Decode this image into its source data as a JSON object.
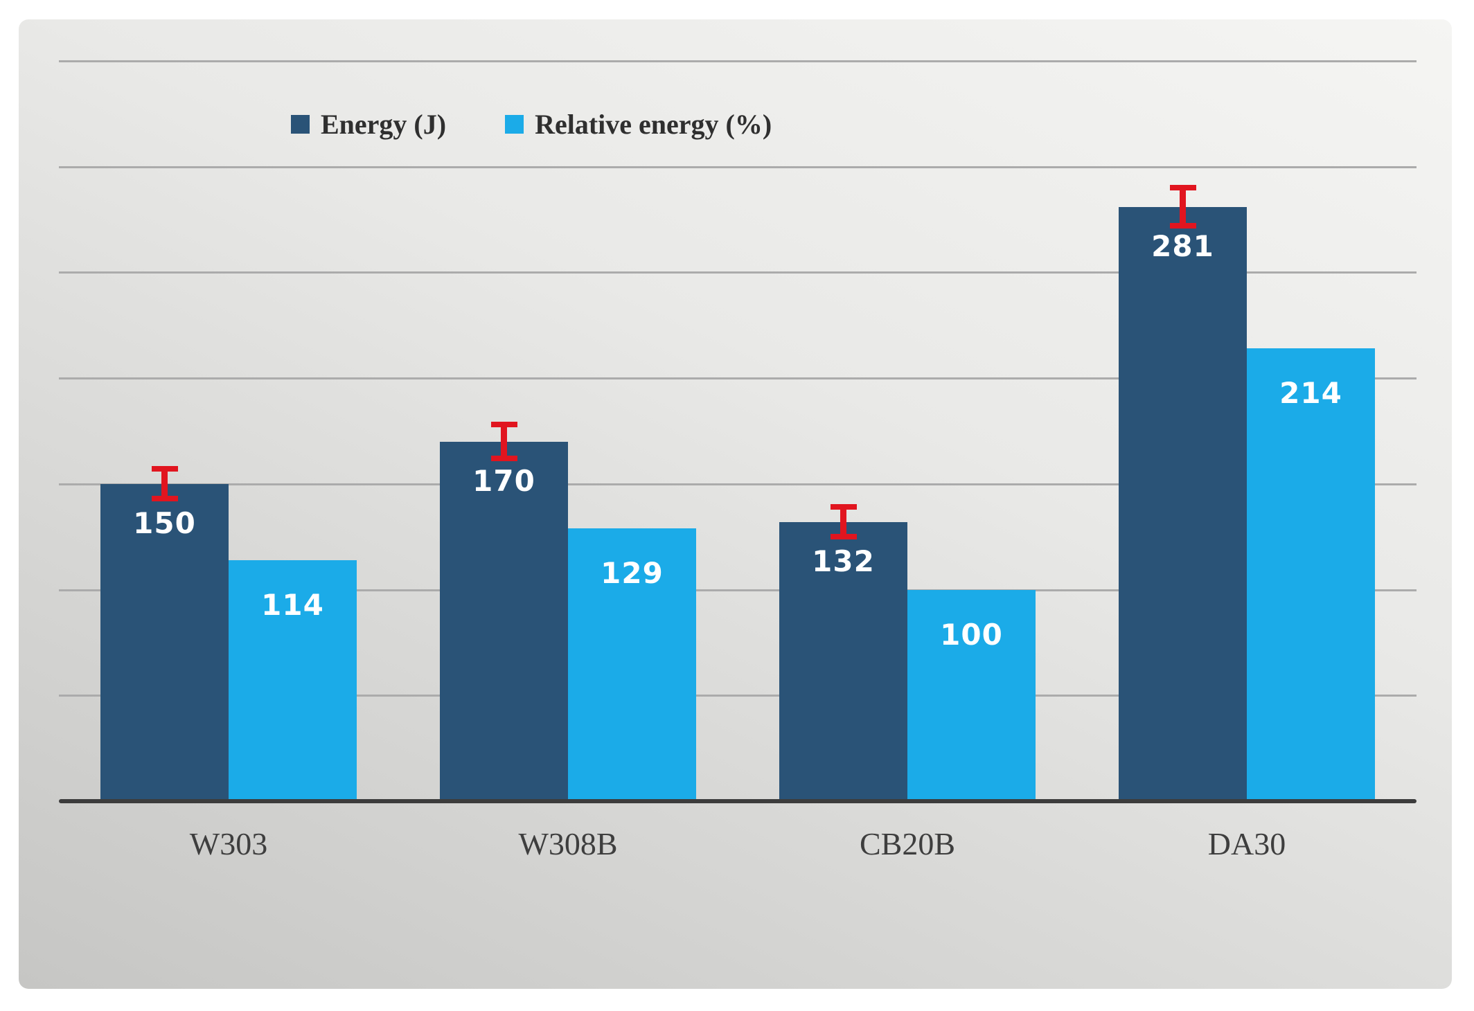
{
  "chart_data": {
    "type": "bar",
    "title": "",
    "xlabel": "",
    "ylabel": "",
    "categories": [
      "W303",
      "W308B",
      "CB20B",
      "DA30"
    ],
    "series": [
      {
        "name": "Energy (J)",
        "color": "#2a5377",
        "values": [
          150,
          170,
          132,
          281
        ],
        "error": [
          7,
          8,
          7,
          9
        ]
      },
      {
        "name": "Relative energy (%)",
        "color": "#1babe8",
        "values": [
          114,
          129,
          100,
          214
        ]
      }
    ],
    "data_labels": {
      "series_0": [
        "150",
        "170",
        "132",
        "281"
      ],
      "series_1": [
        "114",
        "129",
        "100",
        "214"
      ]
    },
    "error_bar_color": "#e1151f",
    "ylim": [
      0,
      350
    ],
    "gridline_step": 50,
    "grid": true,
    "y_axis_tick_labels": [],
    "legend_position": "top"
  }
}
